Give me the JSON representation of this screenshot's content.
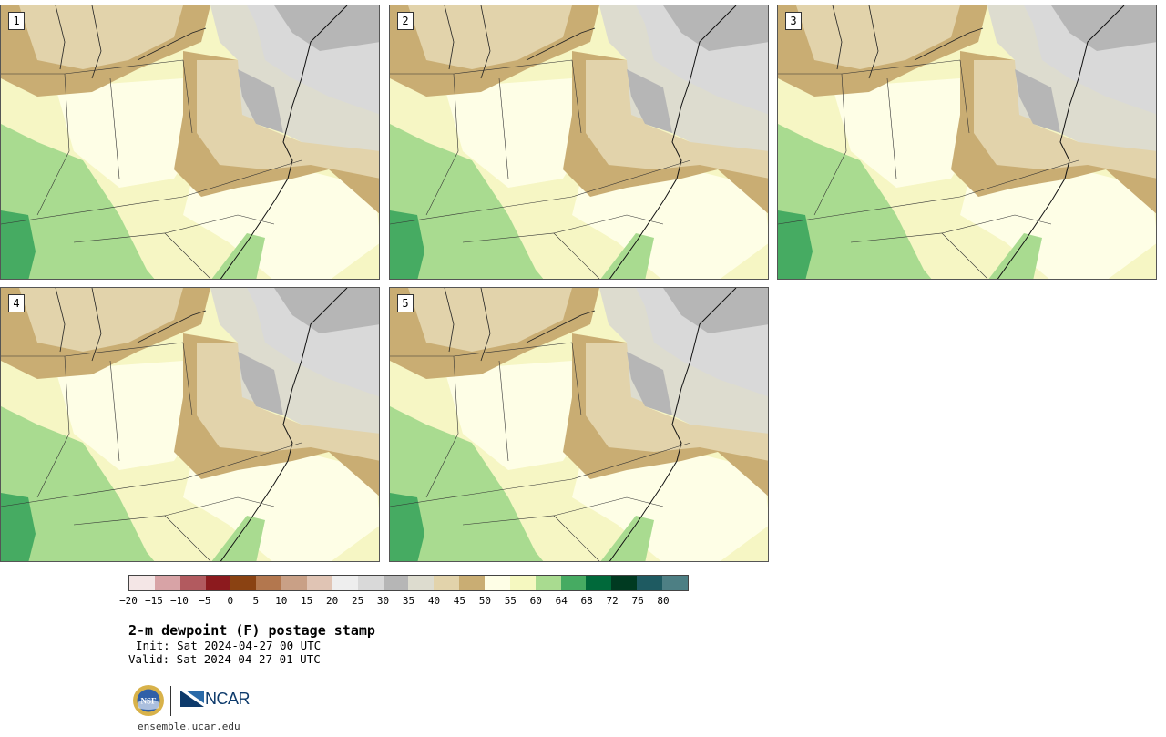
{
  "panels": [
    {
      "label": "1"
    },
    {
      "label": "2"
    },
    {
      "label": "3"
    },
    {
      "label": "4"
    },
    {
      "label": "5"
    }
  ],
  "colorbar": {
    "colors": [
      "#f4e6e6",
      "#d8a3a6",
      "#b25a5f",
      "#8c1a1e",
      "#8a4212",
      "#b3774e",
      "#c9a086",
      "#e0c4b4",
      "#eeeeee",
      "#d9d9d9",
      "#b6b6b6",
      "#dddccf",
      "#e2d3ab",
      "#c9ad73",
      "#fefee6",
      "#f5f8c0",
      "#a9db90",
      "#46ab62",
      "#00693a",
      "#003a21",
      "#1e5a61",
      "#4d7f84"
    ],
    "ticks": [
      "−20",
      "−15",
      "−10",
      "−5",
      "0",
      "5",
      "10",
      "15",
      "20",
      "25",
      "30",
      "35",
      "40",
      "45",
      "50",
      "55",
      "60",
      "64",
      "68",
      "72",
      "76",
      "80"
    ]
  },
  "title": "2-m dewpoint (F) postage stamp",
  "init": "Init: Sat 2024-04-27 00 UTC",
  "valid": "Valid: Sat 2024-04-27 01 UTC",
  "logos": {
    "nsf": "NSF",
    "ncar": "NCAR"
  },
  "site": "ensemble.ucar.edu"
}
